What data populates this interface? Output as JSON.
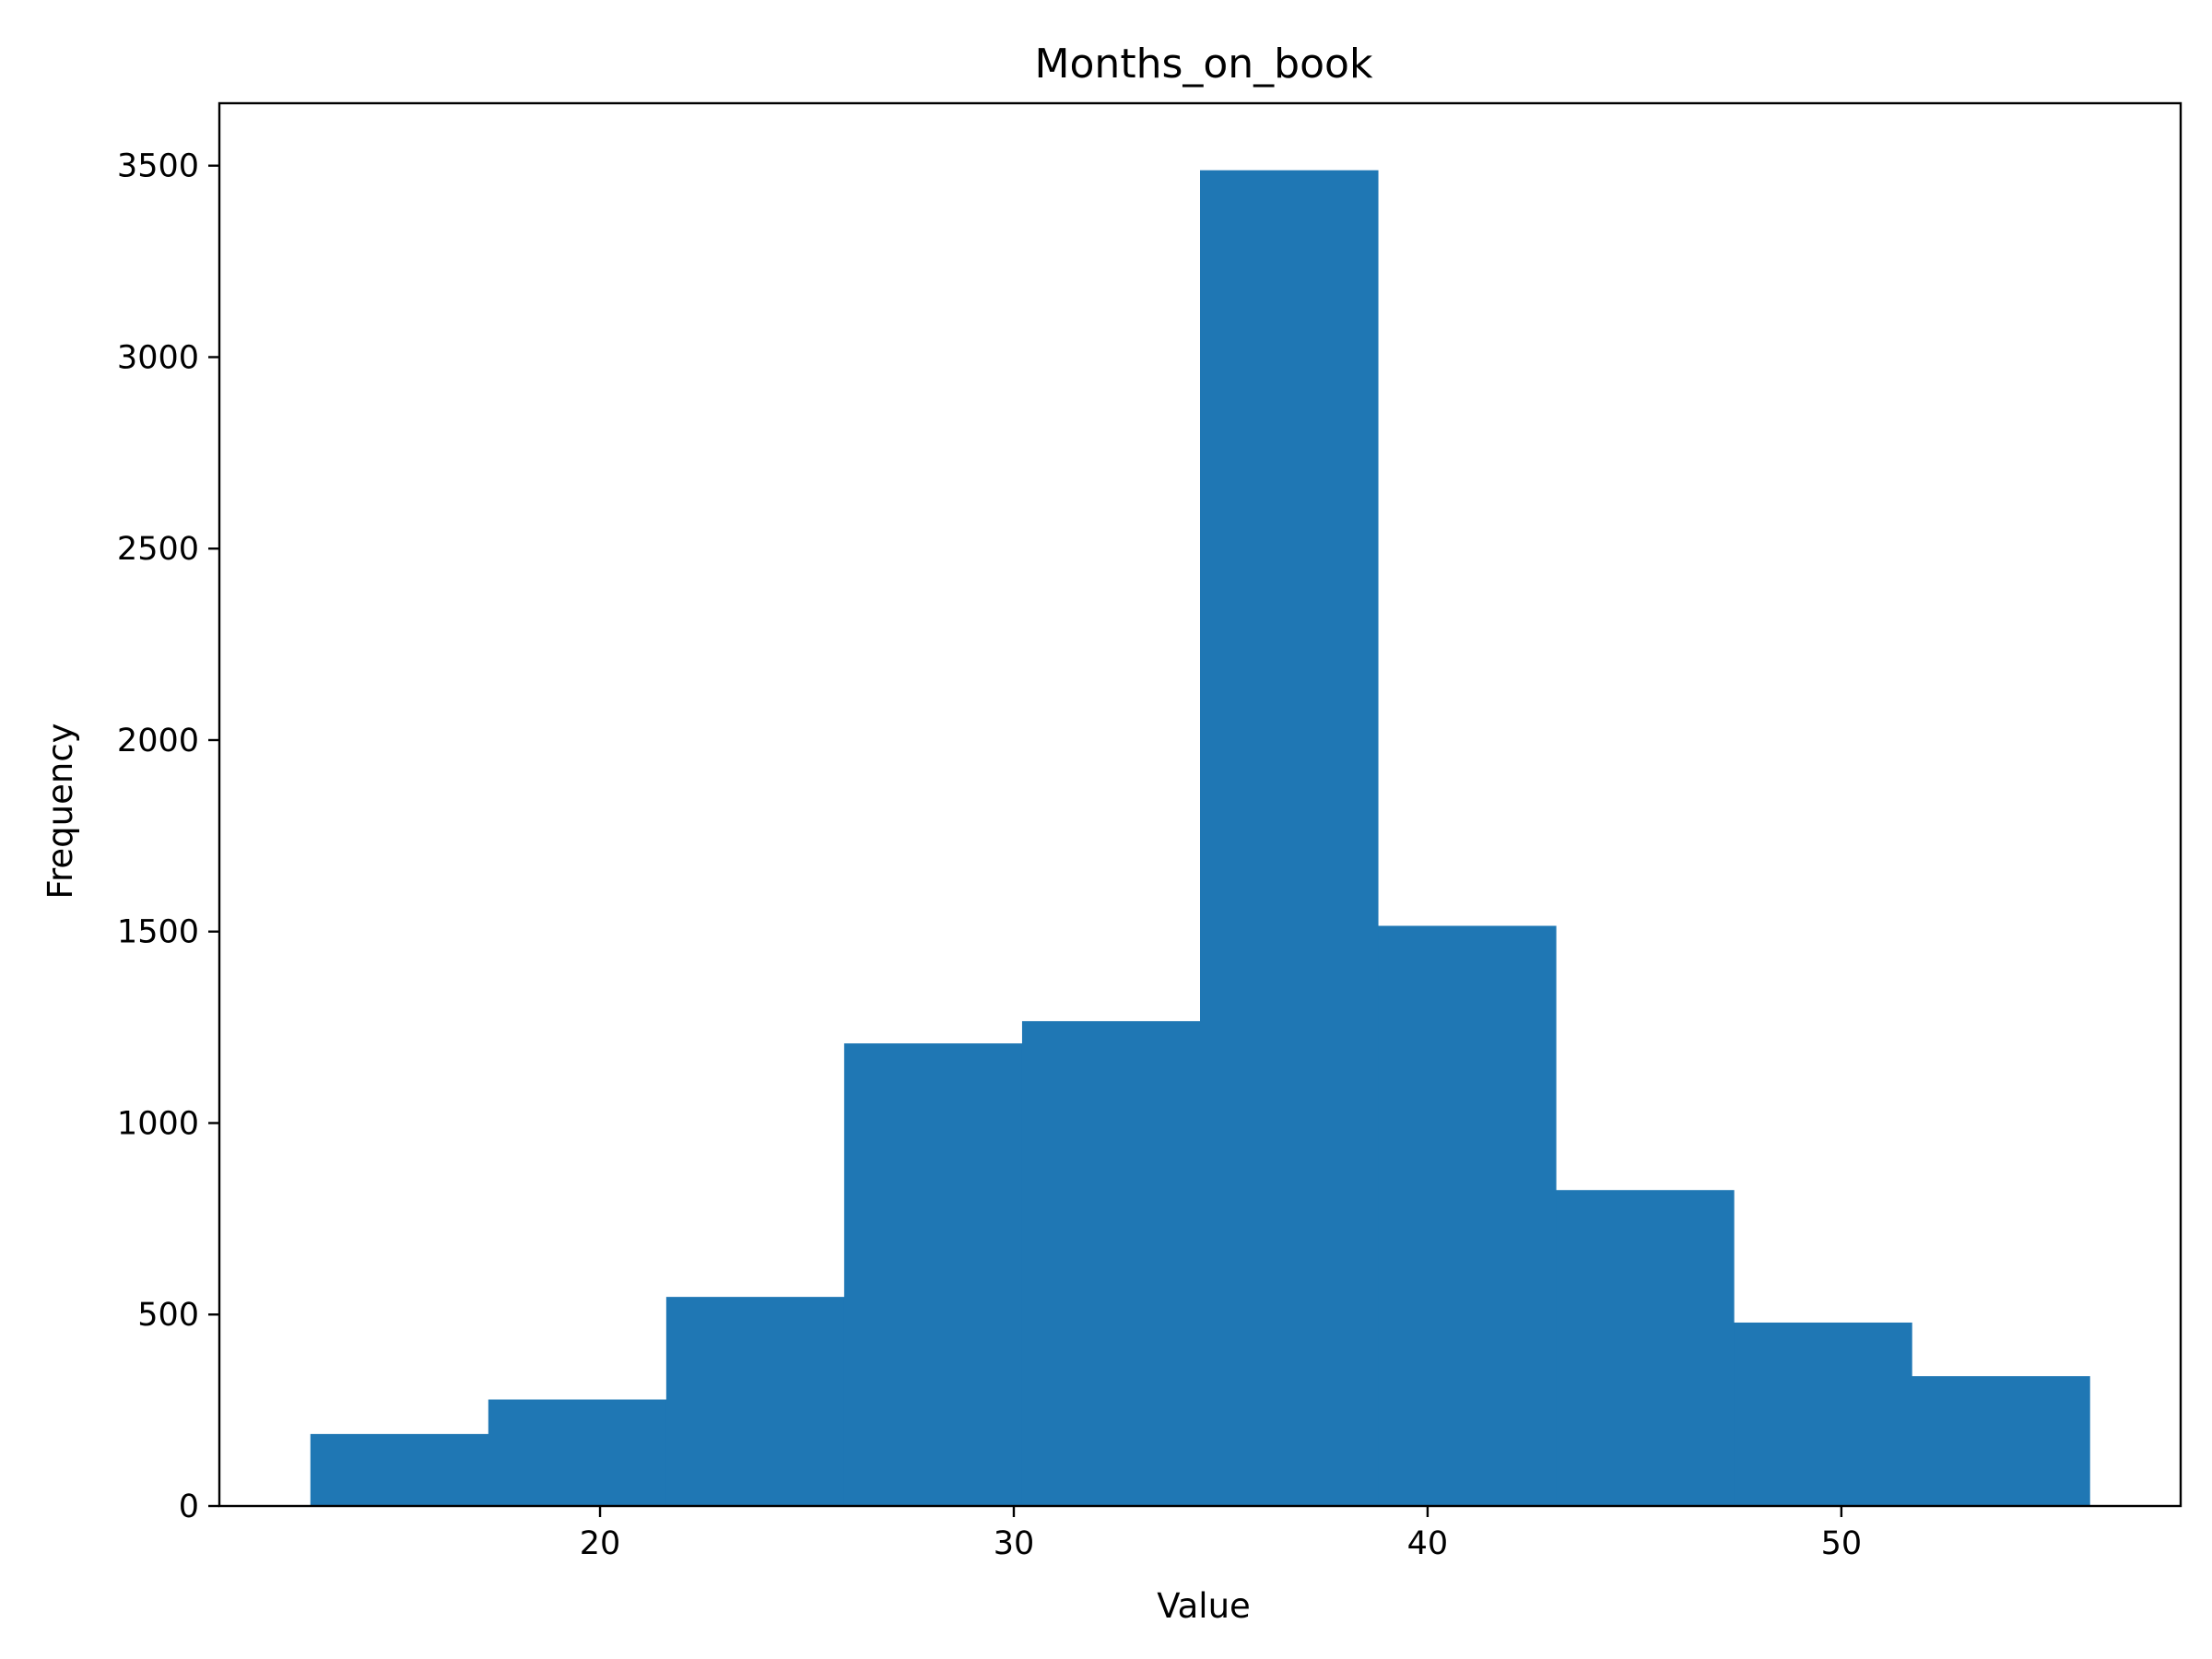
{
  "chart_data": {
    "type": "bar",
    "title": "Months_on_book",
    "xlabel": "Value",
    "ylabel": "Frequency",
    "bin_edges": [
      13,
      17.3,
      21.6,
      25.9,
      30.2,
      34.5,
      38.8,
      43.1,
      47.4,
      51.7,
      56
    ],
    "values": [
      188,
      278,
      546,
      1208,
      1266,
      3488,
      1515,
      825,
      479,
      339
    ],
    "xlim": [
      10.8,
      58.2
    ],
    "ylim": [
      0,
      3663
    ],
    "x_ticks": [
      20,
      30,
      40,
      50
    ],
    "y_ticks": [
      0,
      500,
      1000,
      1500,
      2000,
      2500,
      3000,
      3500
    ],
    "bar_color": "#1f77b4",
    "grid": false,
    "legend": "none"
  }
}
